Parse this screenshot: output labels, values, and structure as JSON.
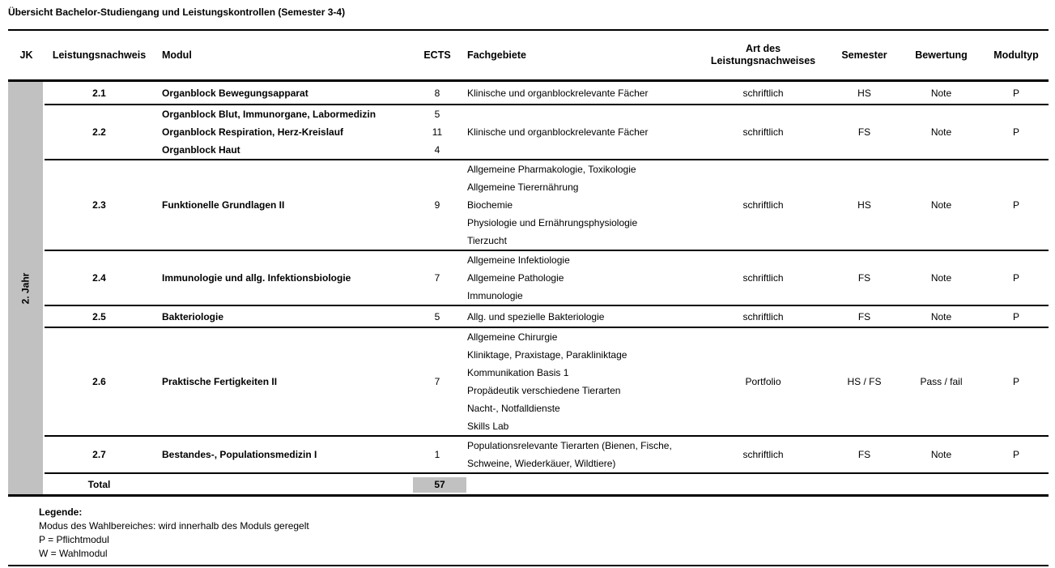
{
  "title": "Übersicht Bachelor-Studiengang und Leistungskontrollen (Semester 3-4)",
  "columns": {
    "jk": "JK",
    "leistungsnachweis": "Leistungsnachweis",
    "modul": "Modul",
    "ects": "ECTS",
    "fachgebiete": "Fachgebiete",
    "art": "Art des Leistungsnachweises",
    "semester": "Semester",
    "bewertung": "Bewertung",
    "modultyp": "Modultyp"
  },
  "jk_label": "2. Jahr",
  "rows": [
    {
      "nr": "2.1",
      "module": [
        {
          "name": "Organblock Bewegungsapparat",
          "ects": "8"
        }
      ],
      "fachgebiete": [
        "Klinische und organblockrelevante Fächer"
      ],
      "art": "schriftlich",
      "semester": "HS",
      "bewertung": "Note",
      "modultyp": "P"
    },
    {
      "nr": "2.2",
      "module": [
        {
          "name": "Organblock Blut, Immunorgane, Labormedizin",
          "ects": "5"
        },
        {
          "name": "Organblock Respiration, Herz-Kreislauf",
          "ects": "11"
        },
        {
          "name": "Organblock Haut",
          "ects": "4"
        }
      ],
      "fachgebiete": [
        "Klinische und organblockrelevante Fächer"
      ],
      "art": "schriftlich",
      "semester": "FS",
      "bewertung": "Note",
      "modultyp": "P"
    },
    {
      "nr": "2.3",
      "module": [
        {
          "name": "Funktionelle Grundlagen II",
          "ects": "9"
        }
      ],
      "fachgebiete": [
        "Allgemeine Pharmakologie, Toxikologie",
        "Allgemeine Tierernährung",
        "Biochemie",
        "Physiologie und Ernährungsphysiologie",
        "Tierzucht"
      ],
      "art": "schriftlich",
      "semester": "HS",
      "bewertung": "Note",
      "modultyp": "P"
    },
    {
      "nr": "2.4",
      "module": [
        {
          "name": "Immunologie und allg. Infektionsbiologie",
          "ects": "7"
        }
      ],
      "fachgebiete": [
        "Allgemeine Infektiologie",
        "Allgemeine Pathologie",
        "Immunologie"
      ],
      "art": "schriftlich",
      "semester": "FS",
      "bewertung": "Note",
      "modultyp": "P"
    },
    {
      "nr": "2.5",
      "module": [
        {
          "name": "Bakteriologie",
          "ects": "5"
        }
      ],
      "fachgebiete": [
        "Allg. und spezielle Bakteriologie"
      ],
      "art": "schriftlich",
      "semester": "FS",
      "bewertung": "Note",
      "modultyp": "P"
    },
    {
      "nr": "2.6",
      "module": [
        {
          "name": "Praktische Fertigkeiten II",
          "ects": "7"
        }
      ],
      "fachgebiete": [
        "Allgemeine Chirurgie",
        "Kliniktage, Praxistage, Parakliniktage",
        "Kommunikation Basis 1",
        "Propädeutik verschiedene Tierarten",
        "Nacht-, Notfalldienste",
        "Skills Lab"
      ],
      "art": "Portfolio",
      "semester": "HS / FS",
      "bewertung": "Pass / fail",
      "modultyp": "P"
    },
    {
      "nr": "2.7",
      "module": [
        {
          "name": "Bestandes-, Populationsmedizin I",
          "ects": "1"
        }
      ],
      "fachgebiete": [
        "Populationsrelevante Tierarten (Bienen, Fische,",
        "Schweine, Wiederkäuer, Wildtiere)"
      ],
      "art": "schriftlich",
      "semester": "FS",
      "bewertung": "Note",
      "modultyp": "P"
    }
  ],
  "total": {
    "label": "Total",
    "ects": "57"
  },
  "legend": {
    "heading": "Legende:",
    "lines": [
      "Modus des Wahlbereiches: wird innerhalb des Moduls geregelt",
      "P = Pflichtmodul",
      "W = Wahlmodul"
    ]
  },
  "colors": {
    "jk_bar": "#c1c1c1",
    "total_highlight": "#c1c1c1",
    "line": "#000000"
  }
}
